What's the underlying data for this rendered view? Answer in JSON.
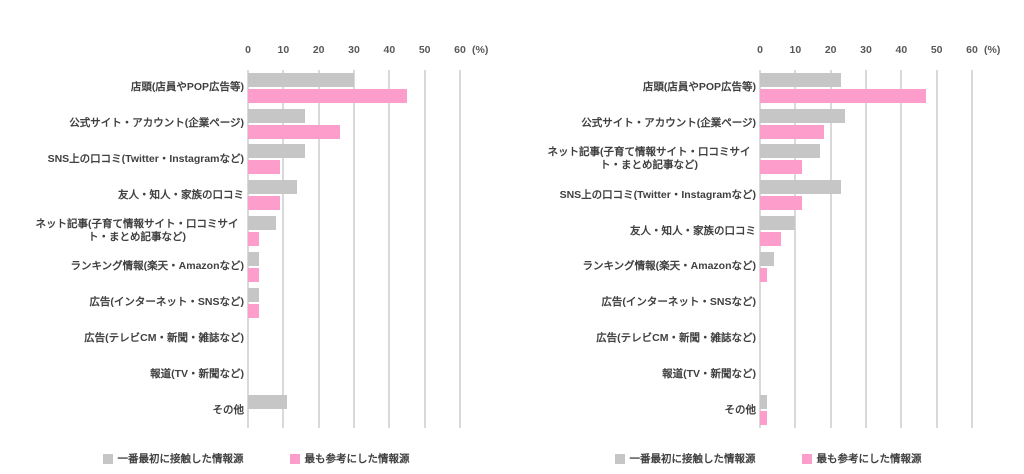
{
  "axis": {
    "ticks": [
      0,
      10,
      20,
      30,
      40,
      50,
      60
    ],
    "max": 60,
    "unit": "(%)"
  },
  "colors": {
    "first_series": "#c6c6c6",
    "most_series": "#fc9dcb",
    "gridline": "#d9d9d9",
    "tick_text": "#595959",
    "label_text": "#404040"
  },
  "legend": {
    "first_label": "一番最初に接触した情報源",
    "most_label": "最も参考にした情報源"
  },
  "chart_data": [
    {
      "type": "bar",
      "orientation": "horizontal",
      "title": "",
      "xlabel": "(%)",
      "xlim": [
        0,
        60
      ],
      "ticks": [
        0,
        10,
        20,
        30,
        40,
        50,
        60
      ],
      "grid": true,
      "legend_position": "bottom",
      "categories": [
        "店頭(店員やPOP広告等)",
        "公式サイト・アカウント(企業ページ)",
        "SNS上の口コミ(Twitter・Instagramなど)",
        "友人・知人・家族の口コミ",
        "ネット記事(子育て情報サイト・口コミサイト・まとめ記事など)",
        "ランキング情報(楽天・Amazonなど)",
        "広告(インターネット・SNSなど)",
        "広告(テレビCM・新聞・雑誌など)",
        "報道(TV・新聞など)",
        "その他"
      ],
      "series": [
        {
          "name": "一番最初に接触した情報源",
          "color": "#c6c6c6",
          "values": [
            30,
            16,
            16,
            14,
            8,
            3,
            3,
            0,
            0,
            11
          ]
        },
        {
          "name": "最も参考にした情報源",
          "color": "#fc9dcb",
          "values": [
            45,
            26,
            9,
            9,
            3,
            3,
            3,
            0,
            0,
            0
          ]
        }
      ]
    },
    {
      "type": "bar",
      "orientation": "horizontal",
      "title": "",
      "xlabel": "(%)",
      "xlim": [
        0,
        60
      ],
      "ticks": [
        0,
        10,
        20,
        30,
        40,
        50,
        60
      ],
      "grid": true,
      "legend_position": "bottom",
      "categories": [
        "店頭(店員やPOP広告等)",
        "公式サイト・アカウント(企業ページ)",
        "ネット記事(子育て情報サイト・口コミサイト・まとめ記事など)",
        "SNS上の口コミ(Twitter・Instagramなど)",
        "友人・知人・家族の口コミ",
        "ランキング情報(楽天・Amazonなど)",
        "広告(インターネット・SNSなど)",
        "広告(テレビCM・新聞・雑誌など)",
        "報道(TV・新聞など)",
        "その他"
      ],
      "series": [
        {
          "name": "一番最初に接触した情報源",
          "color": "#c6c6c6",
          "values": [
            23,
            24,
            17,
            23,
            10,
            4,
            0,
            0,
            0,
            2
          ]
        },
        {
          "name": "最も参考にした情報源",
          "color": "#fc9dcb",
          "values": [
            47,
            18,
            12,
            12,
            6,
            2,
            0,
            0,
            0,
            2
          ]
        }
      ]
    }
  ]
}
